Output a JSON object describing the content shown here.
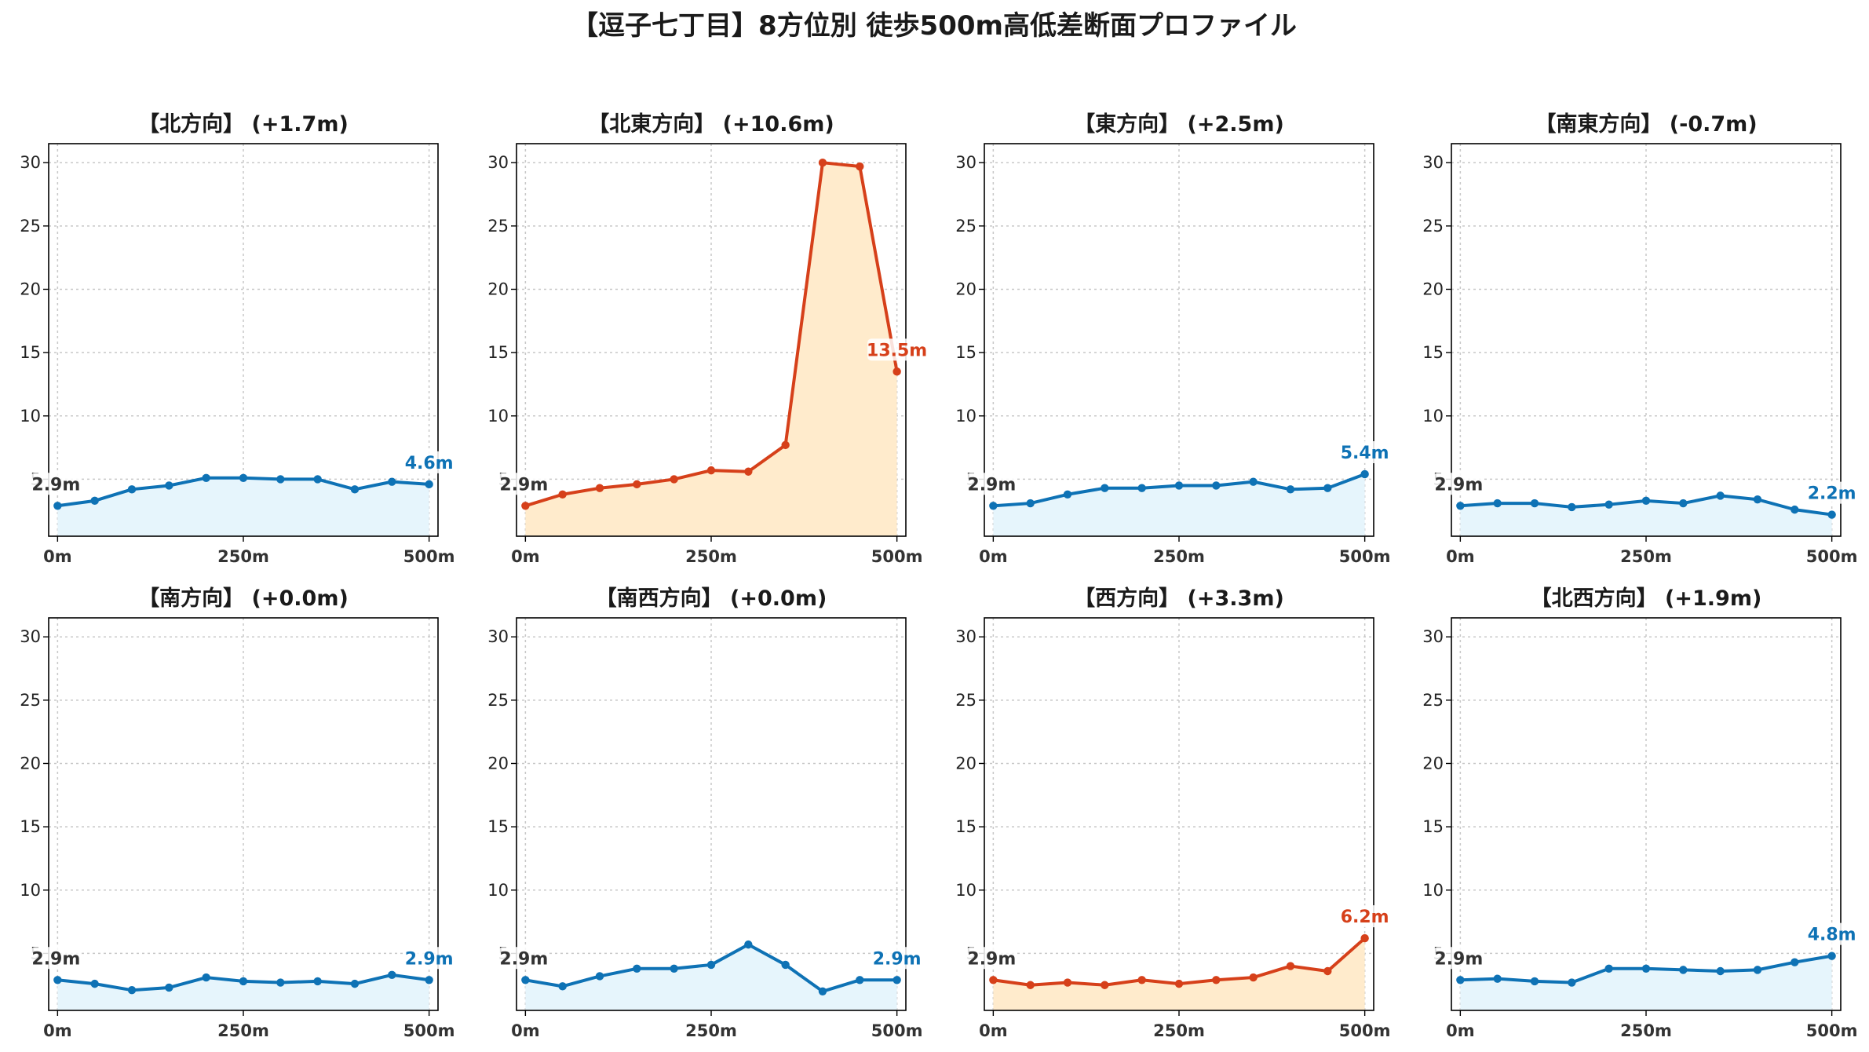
{
  "title": "【逗子七丁目】8方位別 徒歩500m高低差断面プロファイル",
  "colors": {
    "down": "#0e72b5",
    "down_fill": "#e6f5fc",
    "up": "#d6401a",
    "up_fill": "#ffebcc",
    "start_label": "#333333"
  },
  "chart_data": [
    {
      "type": "area",
      "title": "【北方向】 (+1.7m)",
      "trend": "down",
      "x": [
        0,
        50,
        100,
        150,
        200,
        250,
        300,
        350,
        400,
        450,
        500
      ],
      "values": [
        2.9,
        3.3,
        4.2,
        4.5,
        5.1,
        5.1,
        5.0,
        5.0,
        4.2,
        4.8,
        4.6
      ],
      "start_label": "2.9m",
      "end_label": "4.6m",
      "xticks": [
        "0m",
        "250m",
        "500m"
      ],
      "yticks": [
        "5",
        "10",
        "15",
        "20",
        "25",
        "30"
      ],
      "ylim": [
        0.5,
        31.5
      ],
      "xlim": [
        -12,
        512
      ],
      "grid": true
    },
    {
      "type": "area",
      "title": "【北東方向】 (+10.6m)",
      "trend": "up",
      "x": [
        0,
        50,
        100,
        150,
        200,
        250,
        300,
        350,
        400,
        450,
        500
      ],
      "values": [
        2.9,
        3.8,
        4.3,
        4.6,
        5.0,
        5.7,
        5.6,
        7.7,
        30.0,
        29.7,
        13.5
      ],
      "start_label": "2.9m",
      "end_label": "13.5m",
      "xticks": [
        "0m",
        "250m",
        "500m"
      ],
      "yticks": [
        "5",
        "10",
        "15",
        "20",
        "25",
        "30"
      ],
      "ylim": [
        0.5,
        31.5
      ],
      "xlim": [
        -12,
        512
      ],
      "grid": true
    },
    {
      "type": "area",
      "title": "【東方向】 (+2.5m)",
      "trend": "down",
      "x": [
        0,
        50,
        100,
        150,
        200,
        250,
        300,
        350,
        400,
        450,
        500
      ],
      "values": [
        2.9,
        3.1,
        3.8,
        4.3,
        4.3,
        4.5,
        4.5,
        4.8,
        4.2,
        4.3,
        5.4
      ],
      "start_label": "2.9m",
      "end_label": "5.4m",
      "xticks": [
        "0m",
        "250m",
        "500m"
      ],
      "yticks": [
        "5",
        "10",
        "15",
        "20",
        "25",
        "30"
      ],
      "ylim": [
        0.5,
        31.5
      ],
      "xlim": [
        -12,
        512
      ],
      "grid": true
    },
    {
      "type": "area",
      "title": "【南東方向】 (-0.7m)",
      "trend": "down",
      "x": [
        0,
        50,
        100,
        150,
        200,
        250,
        300,
        350,
        400,
        450,
        500
      ],
      "values": [
        2.9,
        3.1,
        3.1,
        2.8,
        3.0,
        3.3,
        3.1,
        3.7,
        3.4,
        2.6,
        2.2
      ],
      "start_label": "2.9m",
      "end_label": "2.2m",
      "xticks": [
        "0m",
        "250m",
        "500m"
      ],
      "yticks": [
        "5",
        "10",
        "15",
        "20",
        "25",
        "30"
      ],
      "ylim": [
        0.5,
        31.5
      ],
      "xlim": [
        -12,
        512
      ],
      "grid": true
    },
    {
      "type": "area",
      "title": "【南方向】 (+0.0m)",
      "trend": "down",
      "x": [
        0,
        50,
        100,
        150,
        200,
        250,
        300,
        350,
        400,
        450,
        500
      ],
      "values": [
        2.9,
        2.6,
        2.1,
        2.3,
        3.1,
        2.8,
        2.7,
        2.8,
        2.6,
        3.3,
        2.9
      ],
      "start_label": "2.9m",
      "end_label": "2.9m",
      "xticks": [
        "0m",
        "250m",
        "500m"
      ],
      "yticks": [
        "5",
        "10",
        "15",
        "20",
        "25",
        "30"
      ],
      "ylim": [
        0.5,
        31.5
      ],
      "xlim": [
        -12,
        512
      ],
      "grid": true
    },
    {
      "type": "area",
      "title": "【南西方向】 (+0.0m)",
      "trend": "down",
      "x": [
        0,
        50,
        100,
        150,
        200,
        250,
        300,
        350,
        400,
        450,
        500
      ],
      "values": [
        2.9,
        2.4,
        3.2,
        3.8,
        3.8,
        4.1,
        5.7,
        4.1,
        2.0,
        2.9,
        2.9
      ],
      "start_label": "2.9m",
      "end_label": "2.9m",
      "xticks": [
        "0m",
        "250m",
        "500m"
      ],
      "yticks": [
        "5",
        "10",
        "15",
        "20",
        "25",
        "30"
      ],
      "ylim": [
        0.5,
        31.5
      ],
      "xlim": [
        -12,
        512
      ],
      "grid": true
    },
    {
      "type": "area",
      "title": "【西方向】 (+3.3m)",
      "trend": "up",
      "x": [
        0,
        50,
        100,
        150,
        200,
        250,
        300,
        350,
        400,
        450,
        500
      ],
      "values": [
        2.9,
        2.5,
        2.7,
        2.5,
        2.9,
        2.6,
        2.9,
        3.1,
        4.0,
        3.6,
        6.2
      ],
      "start_label": "2.9m",
      "end_label": "6.2m",
      "xticks": [
        "0m",
        "250m",
        "500m"
      ],
      "yticks": [
        "5",
        "10",
        "15",
        "20",
        "25",
        "30"
      ],
      "ylim": [
        0.5,
        31.5
      ],
      "xlim": [
        -12,
        512
      ],
      "grid": true
    },
    {
      "type": "area",
      "title": "【北西方向】 (+1.9m)",
      "trend": "down",
      "x": [
        0,
        50,
        100,
        150,
        200,
        250,
        300,
        350,
        400,
        450,
        500
      ],
      "values": [
        2.9,
        3.0,
        2.8,
        2.7,
        3.8,
        3.8,
        3.7,
        3.6,
        3.7,
        4.3,
        4.8
      ],
      "start_label": "2.9m",
      "end_label": "4.8m",
      "xticks": [
        "0m",
        "250m",
        "500m"
      ],
      "yticks": [
        "5",
        "10",
        "15",
        "20",
        "25",
        "30"
      ],
      "ylim": [
        0.5,
        31.5
      ],
      "xlim": [
        -12,
        512
      ],
      "grid": true
    }
  ]
}
